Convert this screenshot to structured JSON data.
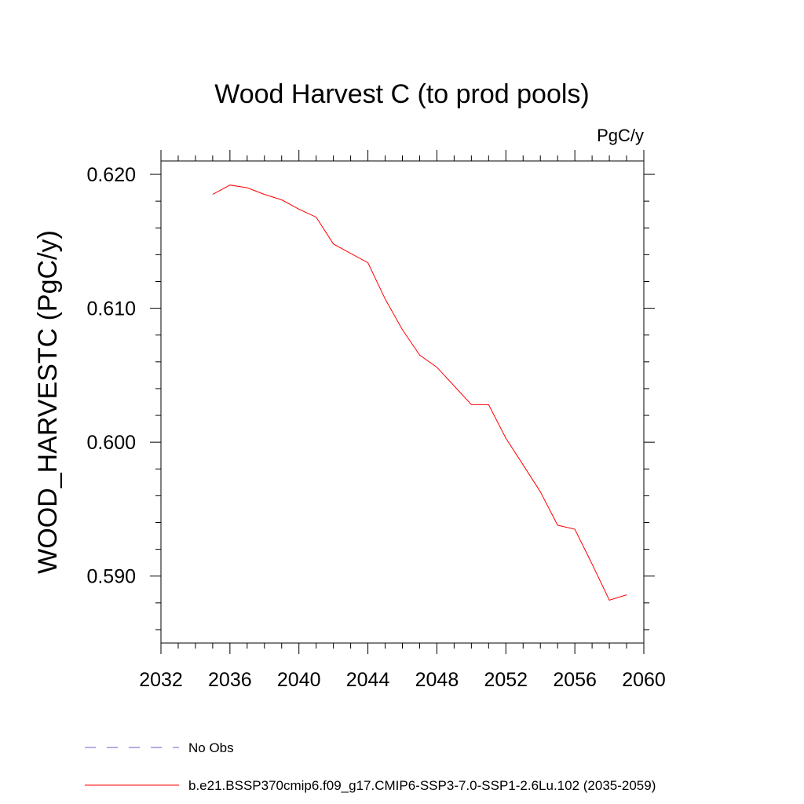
{
  "chart_data": {
    "type": "line",
    "title": "Wood Harvest C (to prod pools)",
    "units": "PgC/y",
    "ylabel": "WOOD_HARVESTC  (PgC/y)",
    "xlabel": "",
    "xlim": [
      2032,
      2060
    ],
    "ylim": [
      0.585,
      0.621
    ],
    "x_ticks": [
      "2032",
      "2036",
      "2040",
      "2044",
      "2048",
      "2052",
      "2056",
      "2060"
    ],
    "y_ticks": [
      "0.590",
      "0.600",
      "0.610",
      "0.620"
    ],
    "grid": false,
    "legend_position": "bottom",
    "legend": [
      {
        "label": "No Obs",
        "color": "#6a5acd",
        "style": "dashed"
      },
      {
        "label": "b.e21.BSSP370cmip6.f09_g17.CMIP6-SSP3-7.0-SSP1-2.6Lu.102 (2035-2059)",
        "color": "#ff0000",
        "style": "solid"
      }
    ],
    "series": [
      {
        "color": "#ff0000",
        "x": [
          2035,
          2036,
          2037,
          2038,
          2039,
          2040,
          2041,
          2042,
          2043,
          2044,
          2045,
          2046,
          2047,
          2048,
          2049,
          2050,
          2051,
          2052,
          2053,
          2054,
          2055,
          2056,
          2057,
          2058,
          2059
        ],
        "y": [
          0.6185,
          0.6192,
          0.619,
          0.6185,
          0.6181,
          0.6174,
          0.6168,
          0.6148,
          0.6141,
          0.6134,
          0.6107,
          0.6084,
          0.6065,
          0.6056,
          0.6042,
          0.6028,
          0.6028,
          0.6003,
          0.5983,
          0.5963,
          0.5938,
          0.5935,
          0.5909,
          0.5882,
          0.5886
        ]
      }
    ]
  }
}
